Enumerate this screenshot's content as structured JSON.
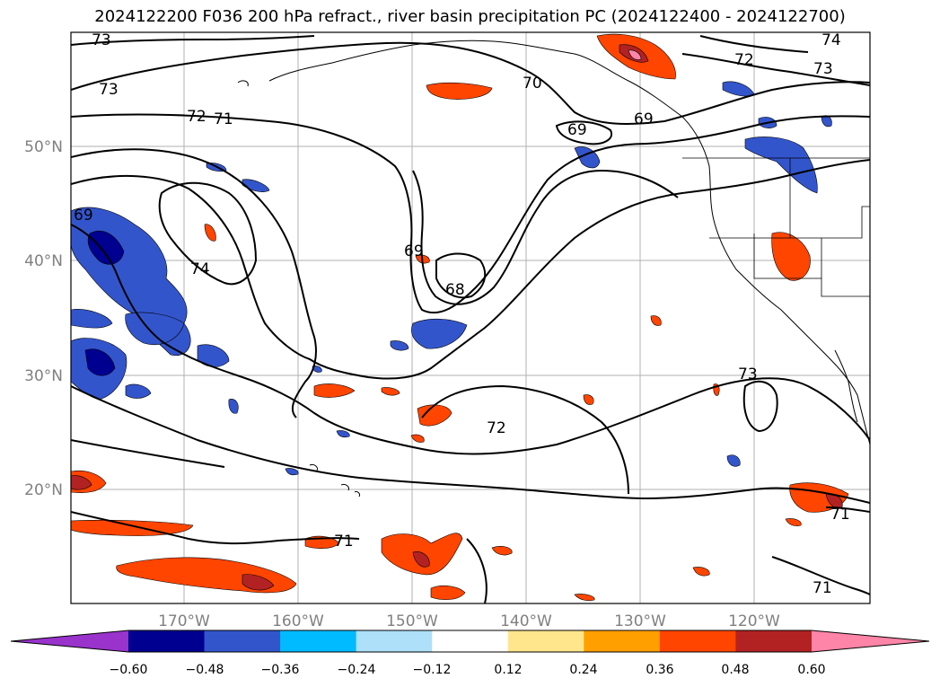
{
  "title": "2024122200 F036 200 hPa refract., river basin precipitation PC (2024122400 - 2024122700)",
  "map": {
    "lat_ticks": [
      "50°N",
      "40°N",
      "30°N",
      "20°N"
    ],
    "lon_ticks": [
      "170°W",
      "160°W",
      "150°W",
      "140°W",
      "130°W",
      "120°W"
    ],
    "contour_labels": [
      "73",
      "74",
      "72",
      "73",
      "70",
      "73",
      "72",
      "71",
      "69",
      "69",
      "69",
      "69",
      "74",
      "68",
      "73",
      "72",
      "71",
      "71",
      "71"
    ]
  },
  "colorbar": {
    "ticks": [
      "−0.60",
      "−0.48",
      "−0.36",
      "−0.24",
      "−0.12",
      "0.12",
      "0.24",
      "0.36",
      "0.48",
      "0.60"
    ],
    "colors": [
      "#9933cc",
      "#000090",
      "#3355cc",
      "#00bbff",
      "#aee0fa",
      "#ffffff",
      "#ffe68c",
      "#ff9f00",
      "#ff4500",
      "#b22222",
      "#ff85a8"
    ]
  }
}
